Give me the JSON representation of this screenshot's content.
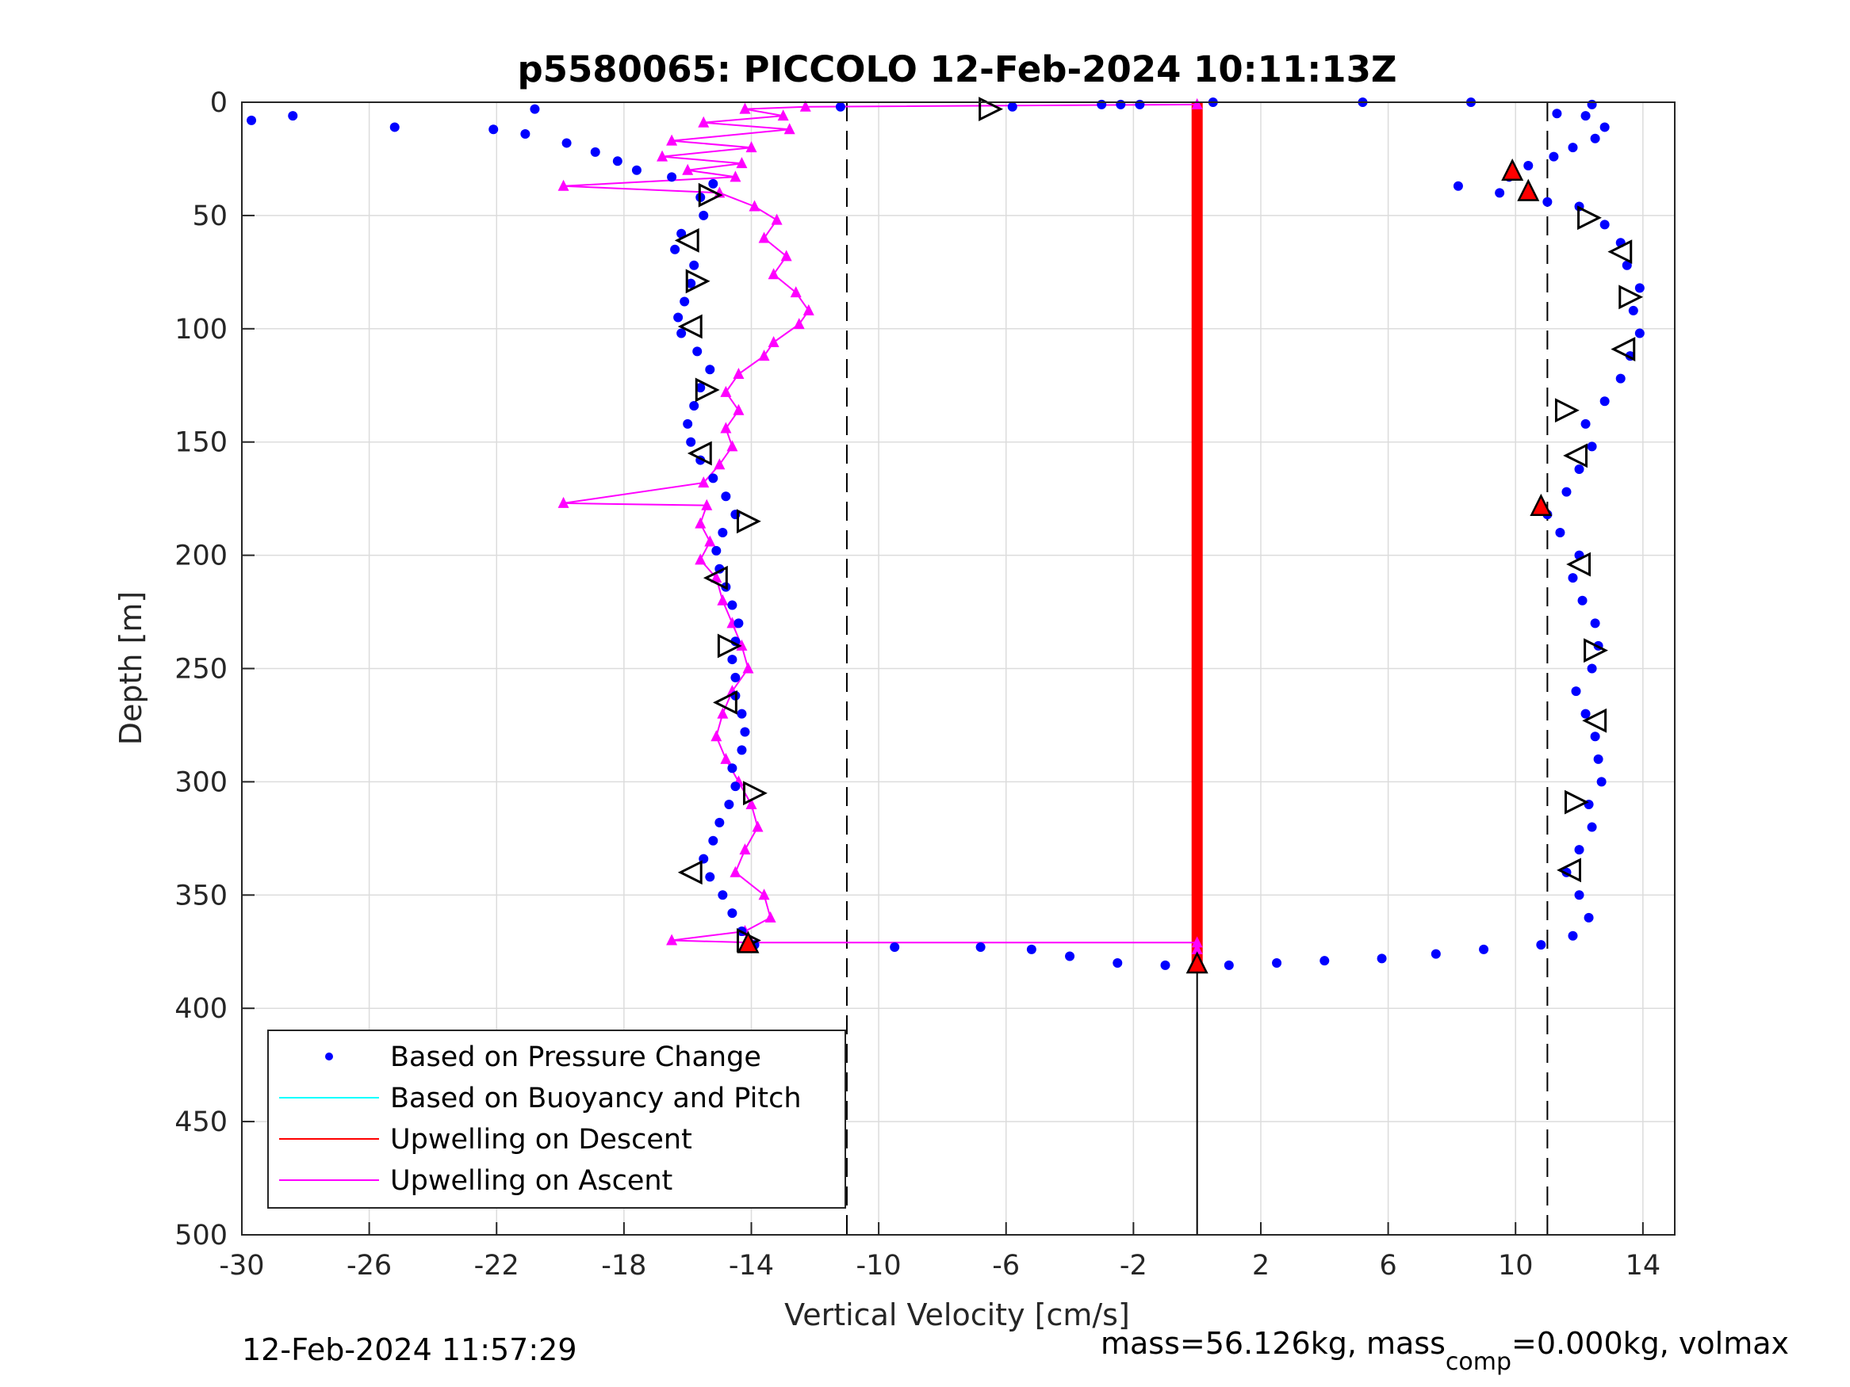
{
  "chart_data": {
    "type": "scatter",
    "title": "p5580065: PICCOLO 12-Feb-2024 10:11:13Z",
    "xlabel": "Vertical Velocity [cm/s]",
    "ylabel": "Depth [m]",
    "xlim": [
      -30,
      15
    ],
    "ylim": [
      0,
      500
    ],
    "y_reversed": true,
    "grid": true,
    "x_ticks": [
      -30,
      -26,
      -22,
      -18,
      -14,
      -10,
      -6,
      -2,
      2,
      6,
      10,
      14
    ],
    "y_ticks": [
      0,
      50,
      100,
      150,
      200,
      250,
      300,
      350,
      400,
      450,
      500
    ],
    "x_tick_labels": [
      "-30",
      "-26",
      "-22",
      "-18",
      "-14",
      "-10",
      "-6",
      "-2",
      "2",
      "6",
      "10",
      "14"
    ],
    "y_tick_labels": [
      "0",
      "50",
      "100",
      "150",
      "200",
      "250",
      "300",
      "350",
      "400",
      "450",
      "500"
    ],
    "legend_position": "bottom-left",
    "reference_lines": {
      "dashed_x": [
        -11,
        11
      ],
      "zero_line": {
        "x": 0,
        "depth_from": 380,
        "depth_to": 500
      }
    },
    "series": [
      {
        "name": "Based on Pressure Change",
        "style": "dots",
        "color": "#0000ff",
        "descent": [
          {
            "v": -29.7,
            "d": 8
          },
          {
            "v": -28.4,
            "d": 6
          },
          {
            "v": -25.2,
            "d": 11
          },
          {
            "v": -20.8,
            "d": 3
          },
          {
            "v": -22.1,
            "d": 12
          },
          {
            "v": -21.1,
            "d": 14
          },
          {
            "v": -19.8,
            "d": 18
          },
          {
            "v": -18.9,
            "d": 22
          },
          {
            "v": -18.2,
            "d": 26
          },
          {
            "v": -17.6,
            "d": 30
          },
          {
            "v": -16.5,
            "d": 33
          },
          {
            "v": -15.2,
            "d": 36
          },
          {
            "v": -15.6,
            "d": 42
          },
          {
            "v": -15.5,
            "d": 50
          },
          {
            "v": -16.2,
            "d": 58
          },
          {
            "v": -16.4,
            "d": 65
          },
          {
            "v": -15.8,
            "d": 72
          },
          {
            "v": -15.9,
            "d": 80
          },
          {
            "v": -16.1,
            "d": 88
          },
          {
            "v": -16.3,
            "d": 95
          },
          {
            "v": -16.2,
            "d": 102
          },
          {
            "v": -15.7,
            "d": 110
          },
          {
            "v": -15.3,
            "d": 118
          },
          {
            "v": -15.6,
            "d": 126
          },
          {
            "v": -15.8,
            "d": 134
          },
          {
            "v": -16.0,
            "d": 142
          },
          {
            "v": -15.9,
            "d": 150
          },
          {
            "v": -15.6,
            "d": 158
          },
          {
            "v": -15.2,
            "d": 166
          },
          {
            "v": -14.8,
            "d": 174
          },
          {
            "v": -14.5,
            "d": 182
          },
          {
            "v": -14.9,
            "d": 190
          },
          {
            "v": -15.1,
            "d": 198
          },
          {
            "v": -15.0,
            "d": 206
          },
          {
            "v": -14.8,
            "d": 214
          },
          {
            "v": -14.6,
            "d": 222
          },
          {
            "v": -14.4,
            "d": 230
          },
          {
            "v": -14.5,
            "d": 238
          },
          {
            "v": -14.6,
            "d": 246
          },
          {
            "v": -14.5,
            "d": 254
          },
          {
            "v": -14.5,
            "d": 262
          },
          {
            "v": -14.3,
            "d": 270
          },
          {
            "v": -14.2,
            "d": 278
          },
          {
            "v": -14.3,
            "d": 286
          },
          {
            "v": -14.6,
            "d": 294
          },
          {
            "v": -14.5,
            "d": 302
          },
          {
            "v": -14.7,
            "d": 310
          },
          {
            "v": -15.0,
            "d": 318
          },
          {
            "v": -15.2,
            "d": 326
          },
          {
            "v": -15.5,
            "d": 334
          },
          {
            "v": -15.3,
            "d": 342
          },
          {
            "v": -14.9,
            "d": 350
          },
          {
            "v": -14.6,
            "d": 358
          },
          {
            "v": -14.3,
            "d": 366
          },
          {
            "v": -13.9,
            "d": 372
          },
          {
            "v": -9.5,
            "d": 373
          },
          {
            "v": -6.8,
            "d": 373
          },
          {
            "v": -5.2,
            "d": 374
          },
          {
            "v": -4.0,
            "d": 377
          },
          {
            "v": -2.5,
            "d": 380
          },
          {
            "v": -1.0,
            "d": 381
          },
          {
            "v": 0.0,
            "d": 381
          },
          {
            "v": 0.5,
            "d": 0
          },
          {
            "v": -3.0,
            "d": 1
          },
          {
            "v": -1.8,
            "d": 1
          },
          {
            "v": -11.2,
            "d": 2
          },
          {
            "v": -5.8,
            "d": 2
          },
          {
            "v": -2.4,
            "d": 1
          }
        ],
        "ascent": [
          {
            "v": 1.0,
            "d": 381
          },
          {
            "v": 2.5,
            "d": 380
          },
          {
            "v": 4.0,
            "d": 379
          },
          {
            "v": 5.8,
            "d": 378
          },
          {
            "v": 7.5,
            "d": 376
          },
          {
            "v": 9.0,
            "d": 374
          },
          {
            "v": 10.8,
            "d": 372
          },
          {
            "v": 11.8,
            "d": 368
          },
          {
            "v": 12.3,
            "d": 360
          },
          {
            "v": 12.0,
            "d": 350
          },
          {
            "v": 11.6,
            "d": 340
          },
          {
            "v": 12.0,
            "d": 330
          },
          {
            "v": 12.4,
            "d": 320
          },
          {
            "v": 12.3,
            "d": 310
          },
          {
            "v": 12.7,
            "d": 300
          },
          {
            "v": 12.6,
            "d": 290
          },
          {
            "v": 12.5,
            "d": 280
          },
          {
            "v": 12.2,
            "d": 270
          },
          {
            "v": 11.9,
            "d": 260
          },
          {
            "v": 12.4,
            "d": 250
          },
          {
            "v": 12.6,
            "d": 240
          },
          {
            "v": 12.5,
            "d": 230
          },
          {
            "v": 12.1,
            "d": 220
          },
          {
            "v": 11.8,
            "d": 210
          },
          {
            "v": 12.0,
            "d": 200
          },
          {
            "v": 11.4,
            "d": 190
          },
          {
            "v": 11.0,
            "d": 182
          },
          {
            "v": 11.6,
            "d": 172
          },
          {
            "v": 12.0,
            "d": 162
          },
          {
            "v": 12.4,
            "d": 152
          },
          {
            "v": 12.2,
            "d": 142
          },
          {
            "v": 12.8,
            "d": 132
          },
          {
            "v": 13.3,
            "d": 122
          },
          {
            "v": 13.6,
            "d": 112
          },
          {
            "v": 13.9,
            "d": 102
          },
          {
            "v": 13.7,
            "d": 92
          },
          {
            "v": 13.9,
            "d": 82
          },
          {
            "v": 13.5,
            "d": 72
          },
          {
            "v": 13.3,
            "d": 62
          },
          {
            "v": 12.8,
            "d": 54
          },
          {
            "v": 12.0,
            "d": 46
          },
          {
            "v": 11.0,
            "d": 44
          },
          {
            "v": 9.5,
            "d": 40
          },
          {
            "v": 8.2,
            "d": 37
          },
          {
            "v": 9.8,
            "d": 33
          },
          {
            "v": 10.4,
            "d": 28
          },
          {
            "v": 11.2,
            "d": 24
          },
          {
            "v": 11.8,
            "d": 20
          },
          {
            "v": 12.5,
            "d": 16
          },
          {
            "v": 12.8,
            "d": 11
          },
          {
            "v": 12.2,
            "d": 6
          },
          {
            "v": 11.3,
            "d": 5
          },
          {
            "v": 12.4,
            "d": 1
          },
          {
            "v": 5.2,
            "d": 0
          },
          {
            "v": 8.6,
            "d": 0
          }
        ]
      },
      {
        "name": "Based on Buoyancy and Pitch",
        "style": "line",
        "color": "#00ffff",
        "points": []
      },
      {
        "name": "Upwelling on Descent",
        "style": "line",
        "color": "#ff0000",
        "points": [
          {
            "v": 0.0,
            "d": 0
          },
          {
            "v": 0.0,
            "d": 380
          }
        ]
      },
      {
        "name": "Upwelling on Ascent",
        "style": "line-triangles",
        "color": "#ff00ff",
        "points": [
          {
            "v": 0.0,
            "d": 1
          },
          {
            "v": -12.3,
            "d": 2
          },
          {
            "v": -14.2,
            "d": 3
          },
          {
            "v": -13.0,
            "d": 6
          },
          {
            "v": -15.5,
            "d": 9
          },
          {
            "v": -12.8,
            "d": 12
          },
          {
            "v": -16.5,
            "d": 17
          },
          {
            "v": -14.0,
            "d": 20
          },
          {
            "v": -16.8,
            "d": 24
          },
          {
            "v": -14.3,
            "d": 27
          },
          {
            "v": -16.0,
            "d": 30
          },
          {
            "v": -14.5,
            "d": 33
          },
          {
            "v": -19.9,
            "d": 37
          },
          {
            "v": -15.0,
            "d": 40
          },
          {
            "v": -13.9,
            "d": 46
          },
          {
            "v": -13.2,
            "d": 52
          },
          {
            "v": -13.6,
            "d": 60
          },
          {
            "v": -12.9,
            "d": 68
          },
          {
            "v": -13.3,
            "d": 76
          },
          {
            "v": -12.6,
            "d": 84
          },
          {
            "v": -12.2,
            "d": 92
          },
          {
            "v": -12.5,
            "d": 98
          },
          {
            "v": -13.3,
            "d": 106
          },
          {
            "v": -13.6,
            "d": 112
          },
          {
            "v": -14.4,
            "d": 120
          },
          {
            "v": -14.8,
            "d": 128
          },
          {
            "v": -14.4,
            "d": 136
          },
          {
            "v": -14.8,
            "d": 144
          },
          {
            "v": -14.6,
            "d": 152
          },
          {
            "v": -15.0,
            "d": 160
          },
          {
            "v": -15.5,
            "d": 168
          },
          {
            "v": -19.9,
            "d": 177
          },
          {
            "v": -15.4,
            "d": 178
          },
          {
            "v": -15.6,
            "d": 186
          },
          {
            "v": -15.3,
            "d": 194
          },
          {
            "v": -15.6,
            "d": 202
          },
          {
            "v": -15.1,
            "d": 210
          },
          {
            "v": -14.9,
            "d": 220
          },
          {
            "v": -14.6,
            "d": 230
          },
          {
            "v": -14.3,
            "d": 240
          },
          {
            "v": -14.1,
            "d": 250
          },
          {
            "v": -14.6,
            "d": 260
          },
          {
            "v": -14.9,
            "d": 270
          },
          {
            "v": -15.1,
            "d": 280
          },
          {
            "v": -14.8,
            "d": 290
          },
          {
            "v": -14.4,
            "d": 300
          },
          {
            "v": -14.0,
            "d": 310
          },
          {
            "v": -13.8,
            "d": 320
          },
          {
            "v": -14.2,
            "d": 330
          },
          {
            "v": -14.5,
            "d": 340
          },
          {
            "v": -13.6,
            "d": 350
          },
          {
            "v": -13.4,
            "d": 360
          },
          {
            "v": -14.2,
            "d": 366
          },
          {
            "v": -16.5,
            "d": 370
          },
          {
            "v": -14.0,
            "d": 371
          },
          {
            "v": 0.0,
            "d": 371
          },
          {
            "v": 0.0,
            "d": 374
          }
        ]
      }
    ],
    "dive_markers": [
      {
        "v": -6.5,
        "d": 3,
        "dir": "right"
      },
      {
        "v": -15.3,
        "d": 41,
        "dir": "right"
      },
      {
        "v": -16.0,
        "d": 61,
        "dir": "left"
      },
      {
        "v": -15.7,
        "d": 79,
        "dir": "right"
      },
      {
        "v": -15.9,
        "d": 99,
        "dir": "left"
      },
      {
        "v": -15.4,
        "d": 127,
        "dir": "right"
      },
      {
        "v": -15.6,
        "d": 155,
        "dir": "left"
      },
      {
        "v": -14.1,
        "d": 185,
        "dir": "right"
      },
      {
        "v": -15.1,
        "d": 210,
        "dir": "left"
      },
      {
        "v": -14.7,
        "d": 240,
        "dir": "right"
      },
      {
        "v": -14.8,
        "d": 265,
        "dir": "left"
      },
      {
        "v": -13.9,
        "d": 305,
        "dir": "right"
      },
      {
        "v": -15.9,
        "d": 340,
        "dir": "left"
      },
      {
        "v": -14.1,
        "d": 370,
        "dir": "right"
      }
    ],
    "climb_markers": [
      {
        "v": 12.3,
        "d": 51,
        "dir": "right"
      },
      {
        "v": 13.3,
        "d": 66,
        "dir": "left"
      },
      {
        "v": 13.6,
        "d": 86,
        "dir": "right"
      },
      {
        "v": 13.4,
        "d": 109,
        "dir": "left"
      },
      {
        "v": 11.6,
        "d": 136,
        "dir": "right"
      },
      {
        "v": 11.9,
        "d": 156,
        "dir": "left"
      },
      {
        "v": 12.0,
        "d": 204,
        "dir": "left"
      },
      {
        "v": 12.5,
        "d": 242,
        "dir": "right"
      },
      {
        "v": 12.5,
        "d": 273,
        "dir": "left"
      },
      {
        "v": 11.9,
        "d": 309,
        "dir": "right"
      },
      {
        "v": 11.7,
        "d": 339,
        "dir": "left"
      }
    ],
    "red_markers": [
      {
        "v": 9.9,
        "d": 30
      },
      {
        "v": 10.4,
        "d": 39
      },
      {
        "v": 10.8,
        "d": 178
      },
      {
        "v": -14.1,
        "d": 371
      },
      {
        "v": 0.0,
        "d": 380
      }
    ]
  },
  "legend": {
    "items": [
      {
        "label": "Based on Pressure Change",
        "symbol": "dot",
        "color": "#0000ff"
      },
      {
        "label": "Based on Buoyancy and Pitch",
        "symbol": "line",
        "color": "#00ffff"
      },
      {
        "label": "Upwelling on Descent",
        "symbol": "line",
        "color": "#ff0000"
      },
      {
        "label": "Upwelling on Ascent",
        "symbol": "line",
        "color": "#ff00ff"
      }
    ]
  },
  "footer": {
    "timestamp": "12-Feb-2024 11:57:29",
    "mass_text": "mass=56.126kg, mass",
    "mass_sub": "comp",
    "mass_rest": "=0.000kg, volmax"
  }
}
